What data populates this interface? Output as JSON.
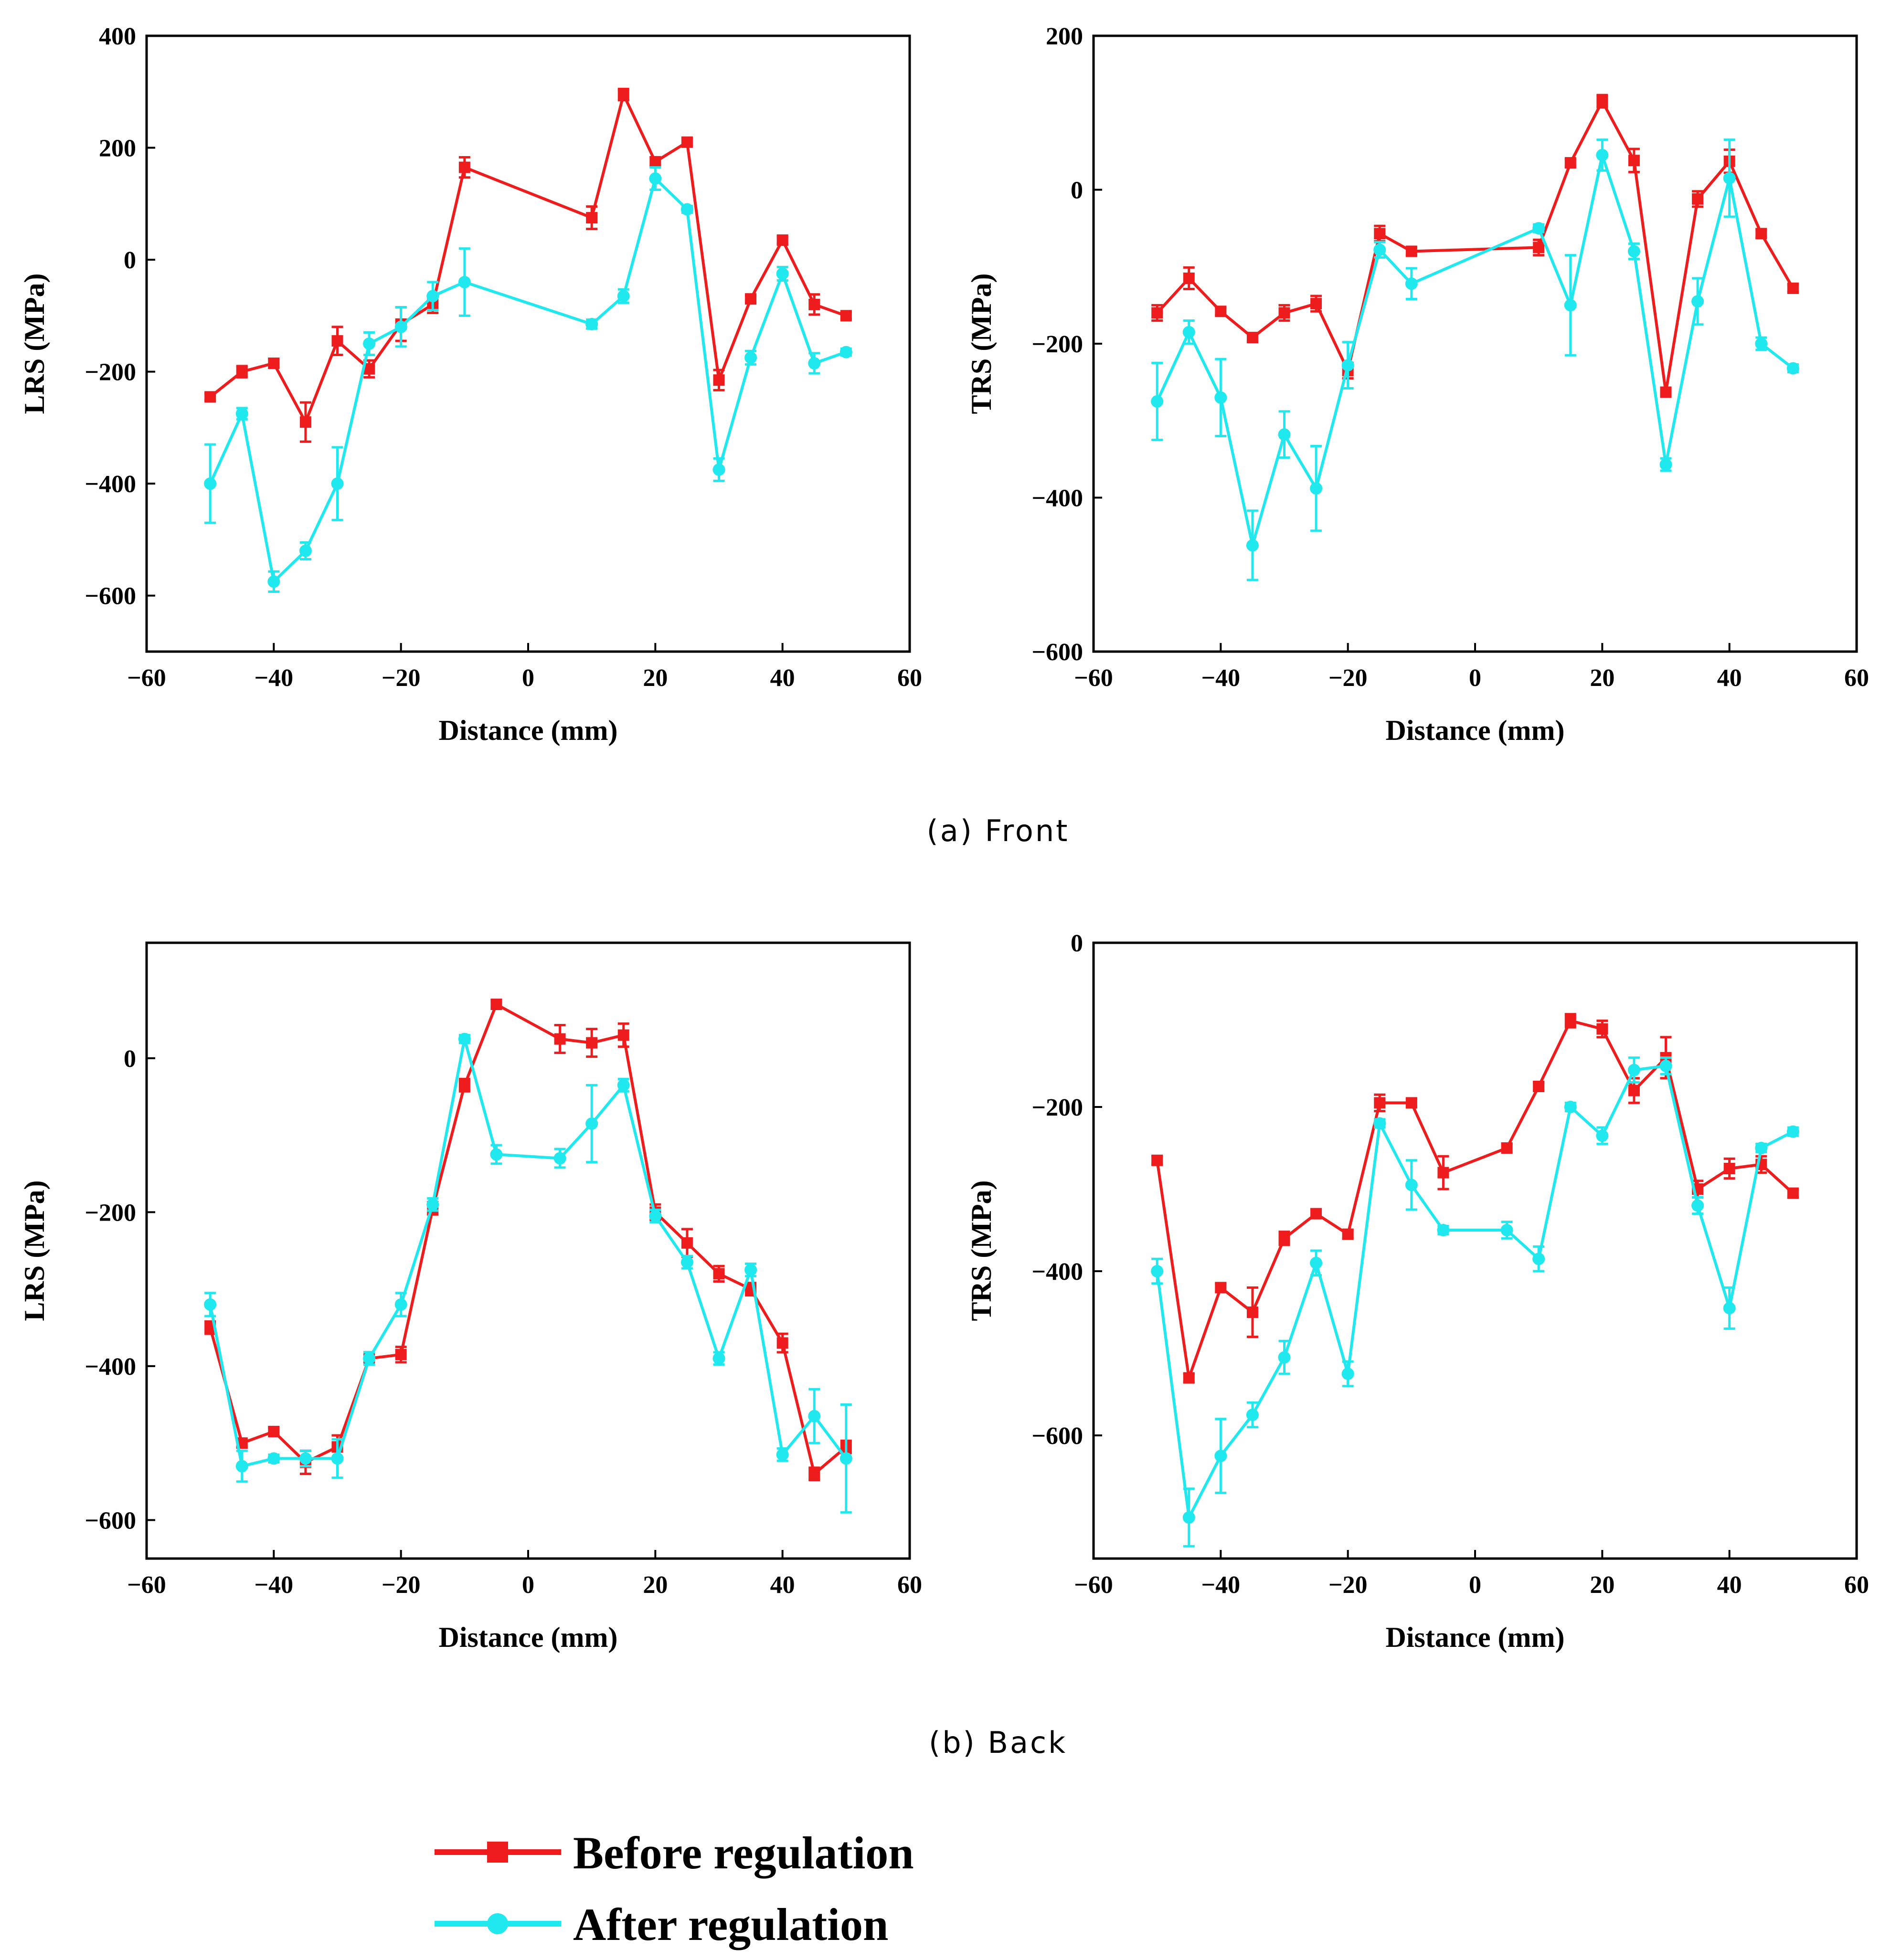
{
  "figure": {
    "caption_front": "(a) Front",
    "caption_back": "(b) Back",
    "legend": [
      {
        "label": "Before regulation",
        "color": "#ee1c1c",
        "marker": "square"
      },
      {
        "label": "After regulation",
        "color": "#1fe8ee",
        "marker": "circle"
      }
    ]
  },
  "chart_data": [
    {
      "id": "front-lrs",
      "type": "line",
      "title": "",
      "xlabel": "Distance (mm)",
      "ylabel": "LRS (MPa)",
      "xlim": [
        -60,
        60
      ],
      "ylim": [
        -700,
        400
      ],
      "xticks": [
        -60,
        -40,
        -20,
        0,
        20,
        40,
        60
      ],
      "yticks": [
        -600,
        -400,
        -200,
        0,
        200,
        400
      ],
      "xticklabels": [
        "−60",
        "−40",
        "−20",
        "0",
        "20",
        "40",
        "60"
      ],
      "yticklabels": [
        "−600",
        "−400",
        "−200",
        "0",
        "200",
        "400"
      ],
      "series": [
        {
          "name": "Before regulation",
          "x": [
            -50,
            -45,
            -40,
            -35,
            -30,
            -25,
            -20,
            -15,
            -10,
            10,
            15,
            20,
            25,
            30,
            35,
            40,
            45,
            50
          ],
          "values": [
            -245,
            -200,
            -185,
            -290,
            -145,
            -195,
            -115,
            -80,
            165,
            75,
            295,
            175,
            210,
            -215,
            -70,
            35,
            -80,
            -100
          ],
          "errors": [
            6,
            10,
            8,
            35,
            25,
            15,
            30,
            15,
            18,
            20,
            10,
            8,
            6,
            18,
            6,
            6,
            18,
            6
          ]
        },
        {
          "name": "After regulation",
          "x": [
            -50,
            -45,
            -40,
            -35,
            -30,
            -25,
            -20,
            -15,
            -10,
            10,
            15,
            20,
            25,
            30,
            35,
            40,
            45,
            50
          ],
          "values": [
            -400,
            -275,
            -575,
            -520,
            -400,
            -150,
            -120,
            -65,
            -40,
            -115,
            -65,
            145,
            90,
            -375,
            -175,
            -25,
            -185,
            -165
          ],
          "errors": [
            70,
            10,
            18,
            15,
            65,
            20,
            35,
            25,
            60,
            8,
            12,
            20,
            6,
            20,
            12,
            12,
            18,
            6
          ]
        }
      ]
    },
    {
      "id": "front-trs",
      "type": "line",
      "title": "",
      "xlabel": "Distance (mm)",
      "ylabel": "TRS (MPa)",
      "xlim": [
        -60,
        60
      ],
      "ylim": [
        -600,
        200
      ],
      "xticks": [
        -60,
        -40,
        -20,
        0,
        20,
        40,
        60
      ],
      "yticks": [
        -600,
        -400,
        -200,
        0,
        200
      ],
      "xticklabels": [
        "−60",
        "−40",
        "−20",
        "0",
        "20",
        "40",
        "60"
      ],
      "yticklabels": [
        "−600",
        "−400",
        "−200",
        "0",
        "200"
      ],
      "series": [
        {
          "name": "Before regulation",
          "x": [
            -50,
            -45,
            -40,
            -35,
            -30,
            -25,
            -20,
            -15,
            -10,
            10,
            15,
            20,
            25,
            30,
            35,
            40,
            45,
            50
          ],
          "values": [
            -160,
            -115,
            -158,
            -192,
            -160,
            -148,
            -235,
            -57,
            -80,
            -75,
            35,
            115,
            38,
            -263,
            -12,
            37,
            -57,
            -128
          ],
          "errors": [
            10,
            14,
            5,
            5,
            10,
            10,
            10,
            10,
            5,
            10,
            5,
            8,
            15,
            5,
            10,
            15,
            5,
            5
          ]
        },
        {
          "name": "After regulation",
          "x": [
            -50,
            -45,
            -40,
            -35,
            -30,
            -25,
            -20,
            -15,
            -10,
            10,
            15,
            20,
            25,
            30,
            35,
            40,
            45,
            50
          ],
          "values": [
            -275,
            -185,
            -270,
            -462,
            -318,
            -388,
            -228,
            -78,
            -122,
            -50,
            -150,
            45,
            -80,
            -357,
            -145,
            15,
            -200,
            -232
          ],
          "errors": [
            50,
            15,
            50,
            45,
            30,
            55,
            30,
            10,
            20,
            5,
            65,
            20,
            10,
            8,
            30,
            50,
            8,
            5
          ]
        }
      ]
    },
    {
      "id": "back-lrs",
      "type": "line",
      "title": "",
      "xlabel": "Distance (mm)",
      "ylabel": "LRS (MPa)",
      "xlim": [
        -60,
        60
      ],
      "ylim": [
        -650,
        150
      ],
      "xticks": [
        -60,
        -40,
        -20,
        0,
        20,
        40,
        60
      ],
      "yticks": [
        -600,
        -400,
        -200,
        0
      ],
      "xticklabels": [
        "−60",
        "−40",
        "−20",
        "0",
        "20",
        "40",
        "60"
      ],
      "yticklabels": [
        "−600",
        "−400",
        "−200",
        "0"
      ],
      "series": [
        {
          "name": "Before regulation",
          "x": [
            -50,
            -45,
            -40,
            -35,
            -30,
            -25,
            -20,
            -15,
            -10,
            -5,
            5,
            10,
            15,
            20,
            25,
            30,
            35,
            40,
            45,
            50
          ],
          "values": [
            -350,
            -500,
            -485,
            -525,
            -505,
            -390,
            -385,
            -195,
            -35,
            70,
            25,
            20,
            30,
            -200,
            -240,
            -280,
            -300,
            -370,
            -540,
            -505
          ],
          "errors": [
            8,
            5,
            5,
            15,
            15,
            8,
            10,
            8,
            8,
            5,
            18,
            18,
            15,
            10,
            18,
            10,
            8,
            12,
            8,
            8
          ]
        },
        {
          "name": "After regulation",
          "x": [
            -50,
            -45,
            -40,
            -35,
            -30,
            -25,
            -20,
            -15,
            -10,
            -5,
            5,
            10,
            15,
            20,
            25,
            30,
            35,
            40,
            45,
            50
          ],
          "values": [
            -320,
            -530,
            -520,
            -520,
            -520,
            -390,
            -320,
            -190,
            25,
            -125,
            -130,
            -85,
            -35,
            -205,
            -265,
            -390,
            -275,
            -515,
            -465,
            -520
          ],
          "errors": [
            15,
            20,
            5,
            10,
            25,
            8,
            15,
            8,
            5,
            12,
            12,
            50,
            8,
            8,
            8,
            8,
            8,
            8,
            35,
            70
          ]
        }
      ]
    },
    {
      "id": "back-trs",
      "type": "line",
      "title": "",
      "xlabel": "Distance (mm)",
      "ylabel": "TRS (MPa)",
      "xlim": [
        -60,
        60
      ],
      "ylim": [
        -750,
        0
      ],
      "xticks": [
        -60,
        -40,
        -20,
        0,
        20,
        40,
        60
      ],
      "yticks": [
        -600,
        -400,
        -200,
        0
      ],
      "xticklabels": [
        "−60",
        "−40",
        "−20",
        "0",
        "20",
        "40",
        "60"
      ],
      "yticklabels": [
        "−600",
        "−400",
        "−200",
        "0"
      ],
      "series": [
        {
          "name": "Before regulation",
          "x": [
            -50,
            -45,
            -40,
            -35,
            -30,
            -25,
            -20,
            -15,
            -10,
            -5,
            5,
            10,
            15,
            20,
            25,
            30,
            35,
            40,
            45,
            50
          ],
          "values": [
            -265,
            -530,
            -420,
            -450,
            -360,
            -330,
            -355,
            -195,
            -195,
            -280,
            -250,
            -175,
            -95,
            -105,
            -180,
            -140,
            -300,
            -275,
            -270,
            -305
          ],
          "errors": [
            5,
            5,
            5,
            30,
            8,
            5,
            5,
            10,
            5,
            20,
            5,
            5,
            8,
            10,
            15,
            25,
            10,
            12,
            10,
            5
          ]
        },
        {
          "name": "After regulation",
          "x": [
            -50,
            -45,
            -40,
            -35,
            -30,
            -25,
            -20,
            -15,
            -10,
            -5,
            5,
            10,
            15,
            20,
            25,
            30,
            35,
            40,
            45,
            50
          ],
          "values": [
            -400,
            -700,
            -625,
            -575,
            -505,
            -390,
            -525,
            -220,
            -295,
            -350,
            -350,
            -385,
            -200,
            -235,
            -155,
            -150,
            -320,
            -445,
            -250,
            -230
          ],
          "errors": [
            15,
            35,
            45,
            15,
            20,
            15,
            15,
            5,
            30,
            5,
            10,
            15,
            5,
            10,
            15,
            10,
            10,
            25,
            5,
            5
          ]
        }
      ]
    }
  ]
}
